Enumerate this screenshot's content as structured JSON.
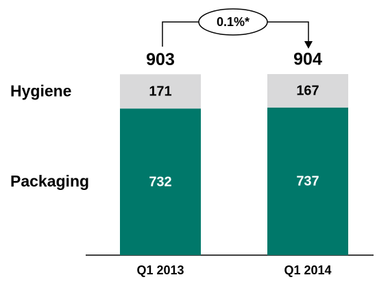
{
  "chart_data": {
    "type": "stacked-bar",
    "categories": [
      "Q1 2013",
      "Q1 2014"
    ],
    "series": [
      {
        "name": "Packaging",
        "color": "#00786a",
        "values": [
          732,
          737
        ]
      },
      {
        "name": "Hygiene",
        "color": "#d9d9da",
        "values": [
          171,
          167
        ]
      }
    ],
    "totals": [
      903,
      904
    ],
    "annotation": "0.1%*"
  }
}
